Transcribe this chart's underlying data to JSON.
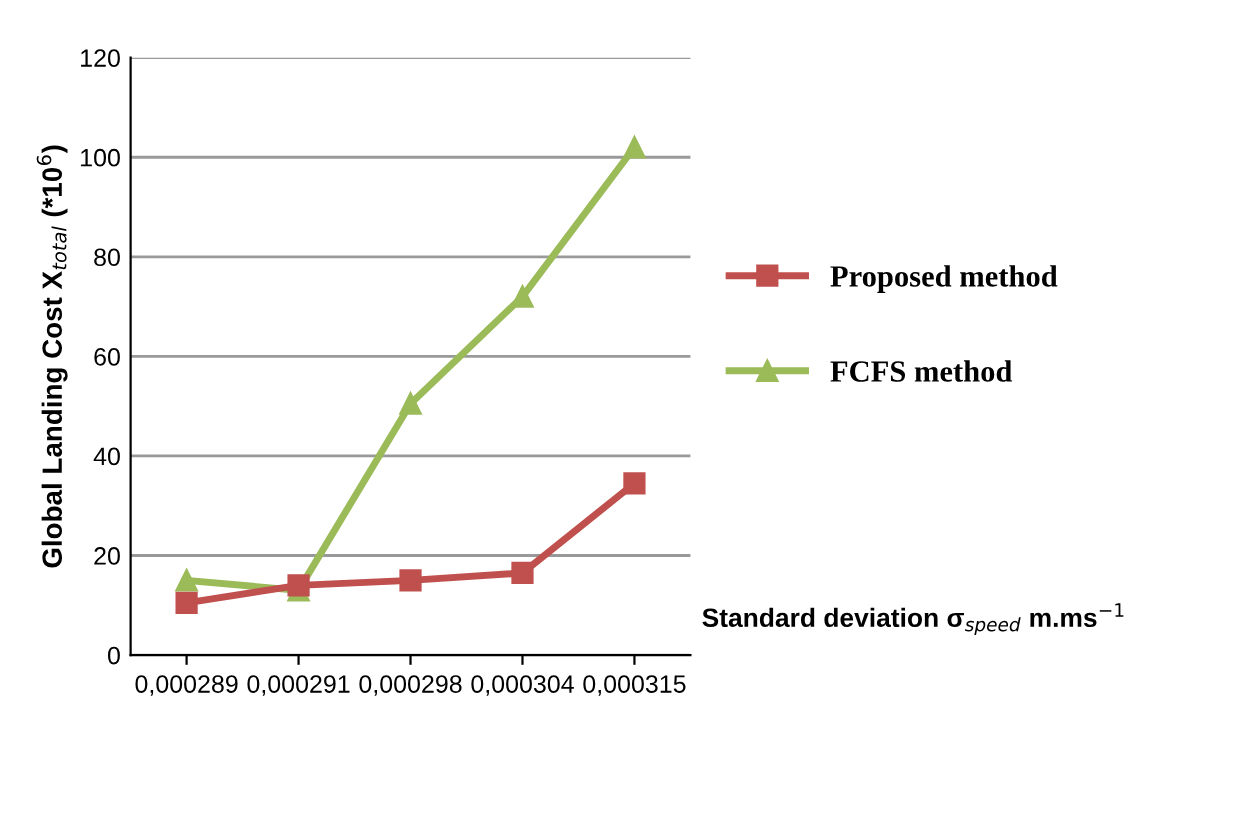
{
  "chart_data": {
    "type": "line",
    "xlabel": "Standard deviation σ$_{speed}$ m.ms$^{−1}$",
    "ylabel": "Global Landing Cost X$_{total}$ (*10$^{6}$)",
    "categories": [
      "0,000289",
      "0,000291",
      "0,000298",
      "0,000304",
      "0,000315"
    ],
    "series": [
      {
        "name": "Proposed method",
        "color": "#c0504d",
        "marker": "square",
        "values": [
          10.5,
          14,
          15,
          16.5,
          34.5
        ]
      },
      {
        "name": "FCFS method",
        "color": "#9bbb59",
        "marker": "triangle",
        "values": [
          15,
          13,
          50.5,
          72,
          102
        ]
      }
    ],
    "ylim": [
      0,
      120
    ],
    "yticks": [
      0,
      20,
      40,
      60,
      80,
      100,
      120
    ],
    "grid": "y",
    "legend": "right",
    "line_style": "solid"
  }
}
